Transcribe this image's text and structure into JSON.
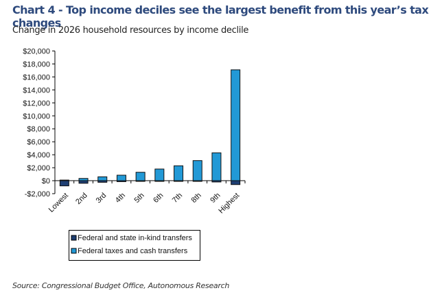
{
  "title": "Chart 4 - Top income deciles see the largest benefit from this year’s tax changes",
  "subtitle": "Change in 2026 household resources by income declile",
  "source": "Source: Congressional Budget Office, Autonomous Research",
  "chart_data": {
    "type": "bar",
    "stacked": true,
    "title": "Change in 2026 household resources by income declile",
    "xlabel": "",
    "ylabel": "",
    "ylim": [
      -2000,
      20000
    ],
    "yticks": [
      -2000,
      0,
      2000,
      4000,
      6000,
      8000,
      10000,
      12000,
      14000,
      16000,
      18000,
      20000
    ],
    "ytick_labels": [
      "-$2,000",
      "$0",
      "$2,000",
      "$4,000",
      "$6,000",
      "$8,000",
      "$10,000",
      "$12,000",
      "$14,000",
      "$16,000",
      "$18,000",
      "$20,000"
    ],
    "categories": [
      "Lowest",
      "2nd",
      "3rd",
      "4th",
      "5th",
      "6th",
      "7th",
      "8th",
      "9th",
      "Highest"
    ],
    "series": [
      {
        "name": "Federal and state in-kind transfers",
        "color": "#1f3f73",
        "values": [
          -800,
          -400,
          -250,
          -150,
          -100,
          -100,
          -100,
          -100,
          -200,
          -600
        ]
      },
      {
        "name": "Federal taxes and cash transfers",
        "color": "#2299d6",
        "values": [
          100,
          350,
          600,
          850,
          1300,
          1800,
          2300,
          3100,
          4300,
          17100
        ]
      }
    ],
    "legend_position": "bottom-left",
    "grid": false
  }
}
